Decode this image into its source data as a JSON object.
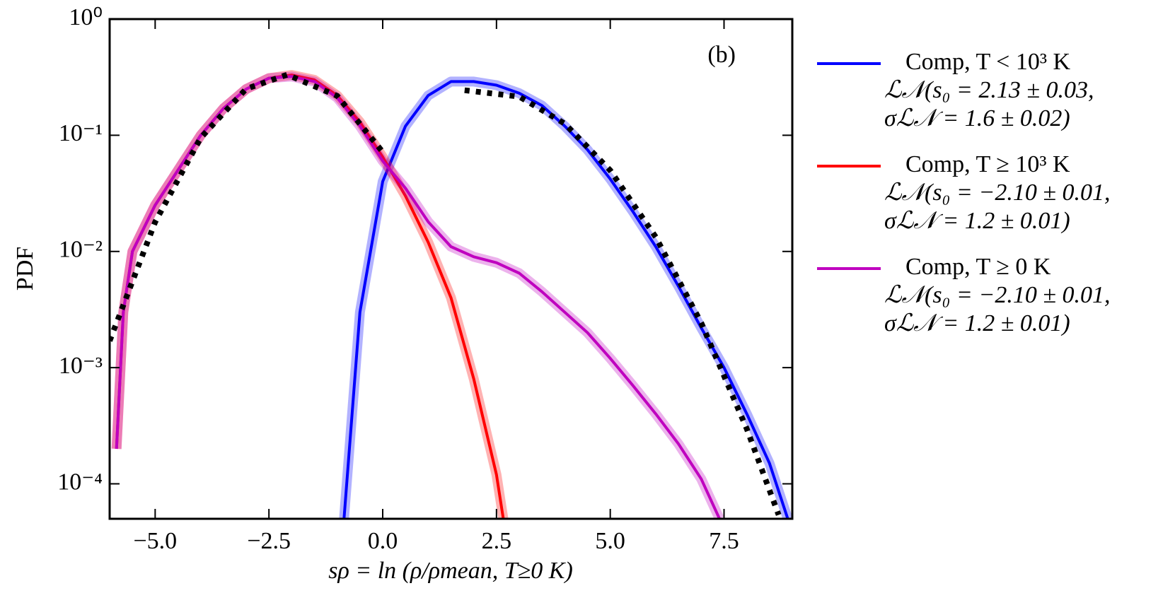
{
  "chart_data": {
    "type": "line",
    "annotation": "(b)",
    "xlabel": "sρ = ln (ρ/ρmean, T≥0 K)",
    "ylabel": "PDF",
    "log_y": true,
    "xlim": [
      -6,
      9
    ],
    "ylim": [
      5e-05,
      1
    ],
    "xticks": [
      {
        "value": -5,
        "label": "−5.0"
      },
      {
        "value": -2.5,
        "label": "−2.5"
      },
      {
        "value": 0,
        "label": "0.0"
      },
      {
        "value": 2.5,
        "label": "2.5"
      },
      {
        "value": 5,
        "label": "5.0"
      },
      {
        "value": 7.5,
        "label": "7.5"
      }
    ],
    "yticks": [
      {
        "value": 1,
        "label": "10⁰"
      },
      {
        "value": 0.1,
        "label": "10⁻¹"
      },
      {
        "value": 0.01,
        "label": "10⁻²"
      },
      {
        "value": 0.001,
        "label": "10⁻³"
      },
      {
        "value": 0.0001,
        "label": "10⁻⁴"
      }
    ],
    "series": [
      {
        "name": "Comp, T < 10³ K",
        "fit": [
          "ℒ𝒩(s₀ = 2.13 ± 0.03,",
          "σℒ𝒩 = 1.6 ± 0.02)"
        ],
        "color": "#0000ff",
        "x": [
          -0.85,
          -0.5,
          0,
          0.5,
          1,
          1.5,
          2,
          2.5,
          3,
          3.5,
          4,
          4.5,
          5,
          5.5,
          6,
          6.5,
          7,
          7.5,
          8,
          8.5,
          8.9
        ],
        "values": [
          5e-05,
          0.003,
          0.04,
          0.12,
          0.22,
          0.29,
          0.29,
          0.27,
          0.23,
          0.18,
          0.12,
          0.075,
          0.042,
          0.022,
          0.011,
          0.005,
          0.0022,
          0.001,
          0.0004,
          0.00015,
          5e-05
        ]
      },
      {
        "name": "Comp, T ≥ 10³ K",
        "fit": [
          "ℒ𝒩(s₀ = −2.10 ± 0.01,",
          "σℒ𝒩 = 1.2 ± 0.01)"
        ],
        "color": "#ff0000",
        "x": [
          -5.85,
          -5.7,
          -5.5,
          -5,
          -4.5,
          -4,
          -3.5,
          -3,
          -2.5,
          -2,
          -1.5,
          -1,
          -0.5,
          0,
          0.5,
          1,
          1.5,
          2,
          2.5,
          2.65
        ],
        "values": [
          0.0002,
          0.003,
          0.01,
          0.025,
          0.05,
          0.1,
          0.17,
          0.25,
          0.31,
          0.33,
          0.3,
          0.22,
          0.13,
          0.065,
          0.03,
          0.012,
          0.004,
          0.0008,
          0.00012,
          5e-05
        ]
      },
      {
        "name": "Comp, T ≥ 0 K",
        "fit": [
          "ℒ𝒩(s₀ = −2.10 ± 0.01,",
          "σℒ𝒩 = 1.2 ± 0.01)"
        ],
        "color": "#bf00bf",
        "x": [
          -5.85,
          -5.7,
          -5.5,
          -5,
          -4.5,
          -4,
          -3.5,
          -3,
          -2.5,
          -2,
          -1.5,
          -1,
          -0.5,
          0,
          0.5,
          1,
          1.5,
          2,
          2.5,
          3,
          3.5,
          4,
          4.5,
          5,
          5.5,
          6,
          6.5,
          7,
          7.4
        ],
        "values": [
          0.0002,
          0.003,
          0.01,
          0.025,
          0.05,
          0.1,
          0.17,
          0.25,
          0.31,
          0.32,
          0.29,
          0.21,
          0.12,
          0.06,
          0.035,
          0.018,
          0.011,
          0.009,
          0.008,
          0.0065,
          0.0045,
          0.003,
          0.002,
          0.0012,
          0.0007,
          0.0004,
          0.00022,
          0.00011,
          5e-05
        ]
      }
    ],
    "fits": [
      {
        "color": "#000000",
        "x": [
          1.8,
          3,
          4,
          5,
          6,
          7,
          8,
          8.7
        ],
        "values": [
          0.244,
          0.215,
          0.126,
          0.0498,
          0.0133,
          0.00243,
          0.000297,
          5.4e-05
        ]
      },
      {
        "color": "#000000",
        "x": [
          -6,
          -5,
          -4,
          -3,
          -2.1,
          -1,
          0
        ],
        "values": [
          0.0017,
          0.0179,
          0.095,
          0.251,
          0.332,
          0.218,
          0.0718
        ]
      }
    ]
  }
}
